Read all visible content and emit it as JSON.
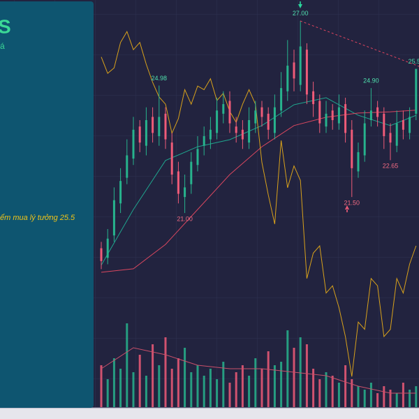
{
  "chart_data": {
    "type": "candlestick",
    "open": [
      19.9,
      19.6,
      20.3,
      21.3,
      22.1,
      22.7,
      23.7,
      23.1,
      24.0,
      23.4,
      24.1,
      23.2,
      22.3,
      21.5,
      21.9,
      22.5,
      23.1,
      23.3,
      23.5,
      24.1,
      24.5,
      23.7,
      23.6,
      23.2,
      23.8,
      24.3,
      24.1,
      23.5,
      24.2,
      24.8,
      25.7,
      25.0,
      26.1,
      24.8,
      24.5,
      23.7,
      24.2,
      23.8,
      24.4,
      23.6,
      22.3,
      22.8,
      23.9,
      24.3,
      24.1,
      23.5,
      23.1,
      23.9,
      23.5,
      24.1
    ],
    "high": [
      20.1,
      20.5,
      21.8,
      22.4,
      23.3,
      24.0,
      23.9,
      24.3,
      24.3,
      24.98,
      24.3,
      23.5,
      22.6,
      22.2,
      22.9,
      23.4,
      23.7,
      24.0,
      24.6,
      24.8,
      24.8,
      24.0,
      23.9,
      24.3,
      24.5,
      24.5,
      24.3,
      24.7,
      25.4,
      26.4,
      26.1,
      27.0,
      26.3,
      25.1,
      24.7,
      24.5,
      24.4,
      24.7,
      24.6,
      23.9,
      23.2,
      24.2,
      24.9,
      24.5,
      24.3,
      23.8,
      24.2,
      24.2,
      24.3,
      25.5
    ],
    "low": [
      19.25,
      19.4,
      20.1,
      21.0,
      21.9,
      22.5,
      22.9,
      22.8,
      23.2,
      23.1,
      23.0,
      21.9,
      21.3,
      21.0,
      21.6,
      22.3,
      22.8,
      23.0,
      23.3,
      23.8,
      23.5,
      23.2,
      23.0,
      23.0,
      23.5,
      23.7,
      23.3,
      23.3,
      24.0,
      24.5,
      24.8,
      24.8,
      24.4,
      24.0,
      23.5,
      23.5,
      23.6,
      23.6,
      23.2,
      21.5,
      22.1,
      22.6,
      23.7,
      23.7,
      23.0,
      22.65,
      22.9,
      23.3,
      23.3,
      23.9
    ],
    "close": [
      19.5,
      20.2,
      21.4,
      22.0,
      22.8,
      23.6,
      23.2,
      23.9,
      23.5,
      24.0,
      23.3,
      22.2,
      21.6,
      21.8,
      22.6,
      23.0,
      23.4,
      23.6,
      24.2,
      24.4,
      23.8,
      23.5,
      23.3,
      23.9,
      24.2,
      24.0,
      23.6,
      24.3,
      24.9,
      25.6,
      25.2,
      26.2,
      24.7,
      24.4,
      23.8,
      24.1,
      23.9,
      24.3,
      23.5,
      22.4,
      22.9,
      23.8,
      24.2,
      24.0,
      23.4,
      23.2,
      23.8,
      23.6,
      24.0,
      25.5
    ],
    "high_labels": [
      null,
      null,
      null,
      null,
      null,
      null,
      null,
      null,
      null,
      "24.98",
      null,
      null,
      null,
      null,
      null,
      null,
      null,
      null,
      null,
      null,
      null,
      null,
      null,
      null,
      null,
      null,
      null,
      null,
      null,
      null,
      null,
      "27.00",
      null,
      null,
      null,
      null,
      null,
      null,
      null,
      null,
      null,
      null,
      "24.90",
      null,
      null,
      null,
      null,
      null,
      null,
      "25.50"
    ],
    "low_labels": [
      null,
      null,
      null,
      null,
      null,
      null,
      null,
      null,
      null,
      null,
      null,
      null,
      null,
      "21.00",
      null,
      null,
      null,
      null,
      null,
      null,
      null,
      null,
      null,
      null,
      null,
      null,
      null,
      null,
      null,
      null,
      null,
      null,
      null,
      null,
      null,
      null,
      null,
      null,
      null,
      "21.50",
      null,
      null,
      null,
      null,
      null,
      "22.65",
      null,
      null,
      null,
      null
    ],
    "ylim": [
      18.93,
      27.65
    ],
    "up_color": "#27b38d",
    "down_color": "#ef5b78",
    "lines": [
      {
        "color": "#1fa58e",
        "x": [
          0,
          5,
          10,
          15,
          20,
          25,
          30,
          35,
          40,
          45,
          49
        ],
        "values": [
          19.37,
          21.11,
          22.64,
          23.07,
          23.29,
          23.73,
          24.38,
          24.6,
          24.05,
          23.73,
          24.05
        ]
      },
      {
        "color": "#d9475f",
        "x": [
          0,
          5,
          10,
          15,
          20,
          25,
          30,
          35,
          40,
          45,
          49
        ],
        "values": [
          19.15,
          19.26,
          20.02,
          21.11,
          22.2,
          23.07,
          23.73,
          23.99,
          24.12,
          24.16,
          24.21
        ]
      }
    ],
    "oscillator": {
      "color": "#d9a21b",
      "ylim": [
        0,
        100
      ],
      "values": [
        92,
        87.5,
        89,
        96,
        99,
        94,
        96,
        90,
        85,
        81,
        79,
        71,
        75,
        83,
        79,
        84,
        83,
        86,
        80,
        82,
        77,
        74,
        79,
        83,
        79,
        63,
        54,
        46,
        69,
        56,
        62,
        58,
        31,
        38,
        40,
        27,
        29,
        23,
        15,
        4,
        19,
        17,
        31,
        29,
        15,
        17,
        31,
        27,
        35,
        40
      ]
    },
    "volume": {
      "ylim": [
        0,
        160
      ],
      "ma_color": "#c9506a",
      "values": [
        60,
        40,
        70,
        55,
        120,
        50,
        75,
        45,
        90,
        60,
        100,
        55,
        70,
        85,
        50,
        60,
        45,
        55,
        40,
        65,
        35,
        50,
        60,
        45,
        70,
        55,
        80,
        60,
        65,
        110,
        85,
        100,
        90,
        55,
        40,
        50,
        45,
        35,
        60,
        40,
        30,
        25,
        35,
        20,
        30,
        25,
        20,
        35,
        25,
        30
      ],
      "ma_x": [
        0,
        5,
        10,
        15,
        20,
        25,
        30,
        35,
        40,
        45,
        49
      ],
      "ma_values": [
        55,
        85,
        75,
        60,
        55,
        55,
        50,
        45,
        30,
        20,
        20
      ]
    }
  },
  "panel": {
    "title": "S",
    "subtitle": "á",
    "note": "ểm mua lý tưởng 25.5"
  }
}
